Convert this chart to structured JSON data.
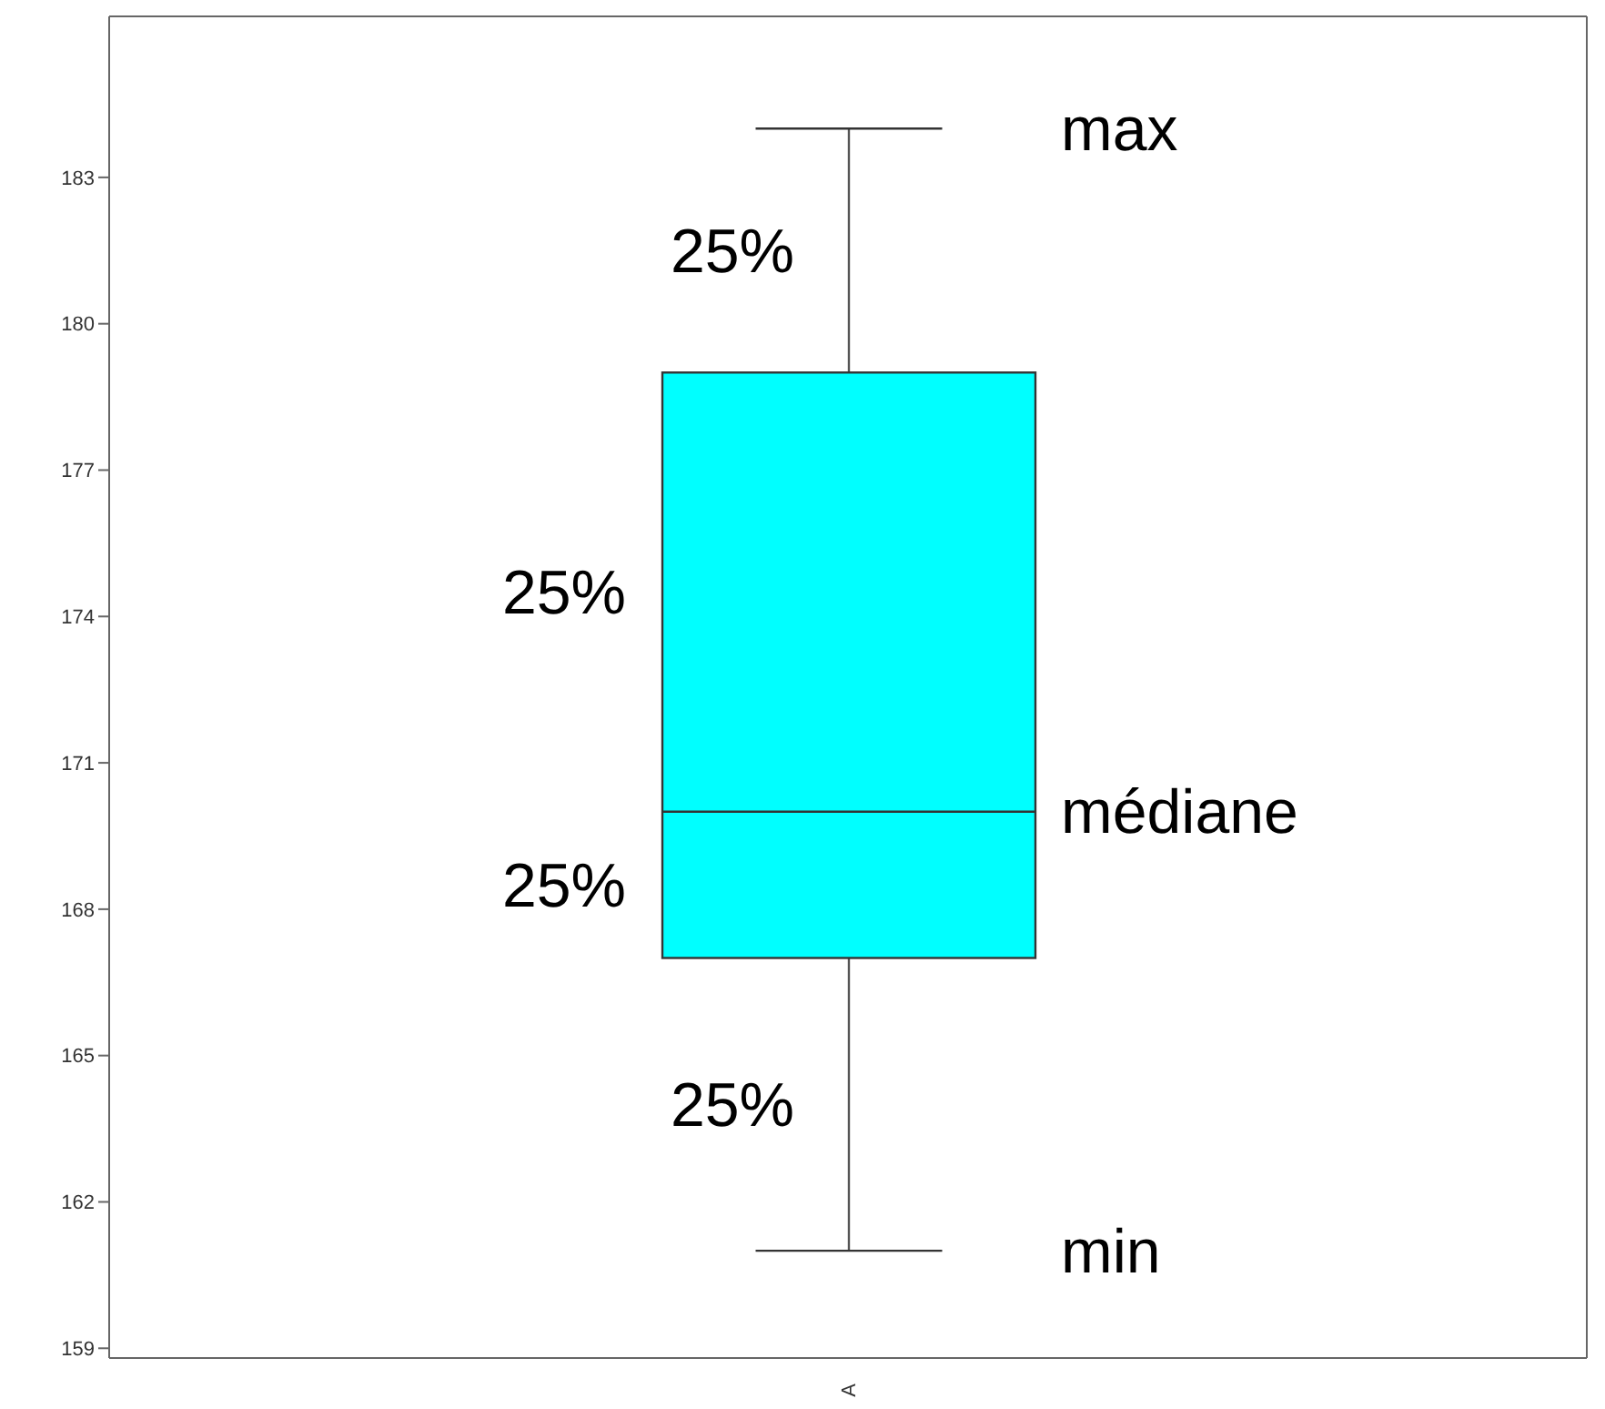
{
  "chart_data": {
    "type": "box",
    "categories": [
      "A"
    ],
    "boxes": [
      {
        "low": 161,
        "q1": 167,
        "median": 170,
        "q3": 179,
        "high": 184
      }
    ],
    "color": "#00ffff",
    "ylim": [
      158.8,
      186.3
    ],
    "yticks": [
      159,
      162,
      165,
      168,
      171,
      174,
      177,
      180,
      183
    ],
    "annotations": [
      "max",
      "25%",
      "25%",
      "médiane",
      "25%",
      "25%",
      "min"
    ]
  }
}
